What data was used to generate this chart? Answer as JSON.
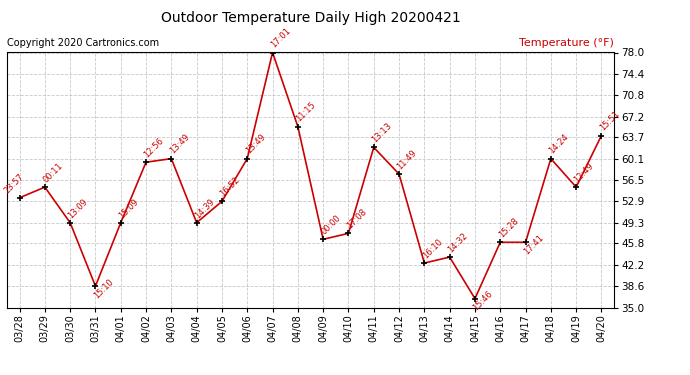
{
  "title": "Outdoor Temperature Daily High 20200421",
  "copyright": "Copyright 2020 Cartronics.com",
  "ylabel": "Temperature (°F)",
  "dates": [
    "03/28",
    "03/29",
    "03/30",
    "03/31",
    "04/01",
    "04/02",
    "04/03",
    "04/04",
    "04/05",
    "04/06",
    "04/07",
    "04/08",
    "04/09",
    "04/10",
    "04/11",
    "04/12",
    "04/13",
    "04/14",
    "04/15",
    "04/16",
    "04/17",
    "04/18",
    "04/19",
    "04/20"
  ],
  "values": [
    53.5,
    55.3,
    49.3,
    38.6,
    49.3,
    59.5,
    60.1,
    49.3,
    52.9,
    60.1,
    78.0,
    65.5,
    46.5,
    47.5,
    62.0,
    57.5,
    42.5,
    43.5,
    36.5,
    46.0,
    46.0,
    60.1,
    55.3,
    64.0
  ],
  "labels": [
    "23:57",
    "00:11",
    "13:09",
    "15:10",
    "15:09",
    "12:56",
    "13:49",
    "14:39",
    "16:52",
    "13:49",
    "17:01",
    "11:15",
    "00:00",
    "17:08",
    "13:13",
    "11:49",
    "16:10",
    "14:32",
    "15:46",
    "15:28",
    "17:41",
    "14:24",
    "12:49",
    "15:51"
  ],
  "line_color": "#cc0000",
  "marker_color": "#000000",
  "label_color": "#cc0000",
  "bg_color": "#ffffff",
  "grid_color": "#bbbbbb",
  "title_color": "#000000",
  "copyright_color": "#000000",
  "ylabel_color": "#cc0000",
  "ylim_min": 35.0,
  "ylim_max": 78.0,
  "yticks": [
    35.0,
    38.6,
    42.2,
    45.8,
    49.3,
    52.9,
    56.5,
    60.1,
    63.7,
    67.2,
    70.8,
    74.4,
    78.0
  ]
}
